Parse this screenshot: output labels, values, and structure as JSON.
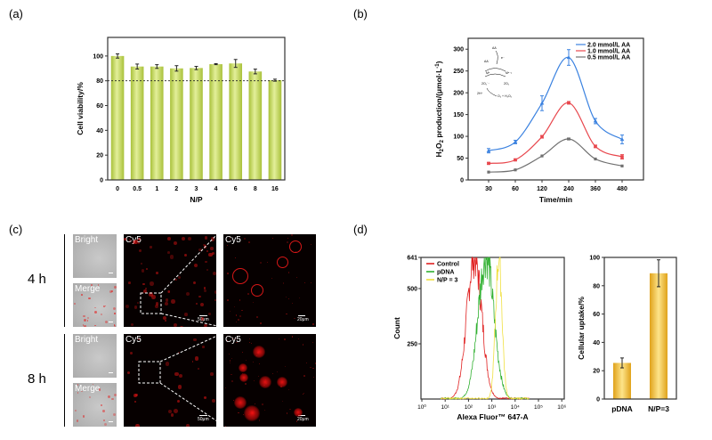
{
  "panels": {
    "a": "(a)",
    "b": "(b)",
    "c": "(c)",
    "d": "(d)"
  },
  "chart_data": [
    {
      "id": "a",
      "type": "bar",
      "title": "",
      "xlabel": "N/P",
      "ylabel": "Cell viability/%",
      "categories": [
        "0",
        "0.5",
        "1",
        "2",
        "3",
        "4",
        "6",
        "8",
        "16"
      ],
      "values": [
        100,
        91.5,
        91.5,
        90,
        90.3,
        93.4,
        94,
        87.5,
        80.5
      ],
      "errors": [
        1.7,
        2,
        1.5,
        2.2,
        1.3,
        0.4,
        3.2,
        1.9,
        0.8
      ],
      "ylim": [
        0,
        115
      ],
      "yticks": [
        0,
        20,
        40,
        60,
        80,
        100
      ],
      "reference_line": 80,
      "bar_color": "#c8dc6a",
      "grid": false
    },
    {
      "id": "b",
      "type": "line",
      "title": "",
      "xlabel": "Time/min",
      "ylabel": "H2O2 production/(μmol·L-1)",
      "x": [
        "30",
        "60",
        "120",
        "240",
        "360",
        "480"
      ],
      "ylim": [
        0,
        325
      ],
      "yticks": [
        0,
        50,
        100,
        150,
        200,
        250,
        300
      ],
      "legend_position": "top-right",
      "series": [
        {
          "name": "2.0 mmol/L AA",
          "color": "#3b82e0",
          "marker": "triangle",
          "values": [
            67,
            87,
            176,
            281,
            135,
            93
          ],
          "errors": [
            5,
            4,
            17,
            18,
            6,
            10
          ]
        },
        {
          "name": "1.0 mmol/L AA",
          "color": "#e8474d",
          "marker": "circle",
          "values": [
            38,
            46,
            99,
            177,
            77,
            53
          ],
          "errors": [
            2,
            2,
            3,
            3,
            3,
            5
          ]
        },
        {
          "name": "0.5 mmol/L AA",
          "color": "#707070",
          "marker": "square",
          "values": [
            18,
            23,
            55,
            94,
            48,
            32
          ],
          "errors": [
            1,
            1,
            1,
            2,
            1,
            1
          ]
        }
      ],
      "inset_scheme": {
        "labels": [
          "AA",
          "AA˙",
          "e⁻",
          "Mⁿ",
          "Mⁿ⁻¹",
          "2O₂˙⁻",
          "2O₂",
          "2H⁺",
          "O₂ + H₂O₂"
        ]
      },
      "grid": false
    },
    {
      "id": "d-histogram",
      "type": "line",
      "title": "",
      "xlabel": "Alexa Fluor™ 647-A",
      "ylabel": "Count",
      "xscale": "log",
      "xlim": [
        1,
        1000000
      ],
      "xticks": [
        "10⁰",
        "10¹",
        "10²",
        "10³",
        "10⁴",
        "10⁵",
        "10⁶"
      ],
      "ylim": [
        0,
        641
      ],
      "yticks": [
        250,
        500,
        641
      ],
      "legend_position": "top-left",
      "series": [
        {
          "name": "Control",
          "color": "#e02020",
          "peak_log10": 2.25,
          "peak_count": 641,
          "width": 0.32
        },
        {
          "name": "pDNA",
          "color": "#30b030",
          "peak_log10": 2.75,
          "peak_count": 641,
          "width": 0.34
        },
        {
          "name": "N/P = 3",
          "color": "#f0e040",
          "peak_log10": 3.3,
          "peak_count": 641,
          "width": 0.14
        }
      ],
      "grid": false
    },
    {
      "id": "d-uptake",
      "type": "bar",
      "title": "",
      "xlabel": "",
      "ylabel": "Cellular uptake/%",
      "categories": [
        "pDNA",
        "N/P=3"
      ],
      "values": [
        25.5,
        88.8
      ],
      "errors": [
        3.5,
        9.5
      ],
      "ylim": [
        0,
        100
      ],
      "yticks": [
        0,
        20,
        40,
        60,
        80,
        100
      ],
      "bar_color": "#f0c23a",
      "grid": false
    }
  ],
  "microscopy": {
    "rows": [
      {
        "time": "4 h",
        "bright": "Bright",
        "merge": "Merge",
        "cy5": "Cy5",
        "cy5_zoom": "Cy5",
        "scale_main": "50μm",
        "scale_zoom": "20μm"
      },
      {
        "time": "8 h",
        "bright": "Bright",
        "merge": "Merge",
        "cy5": "Cy5",
        "cy5_zoom": "Cy5",
        "scale_main": "50μm",
        "scale_zoom": "20μm"
      }
    ]
  }
}
